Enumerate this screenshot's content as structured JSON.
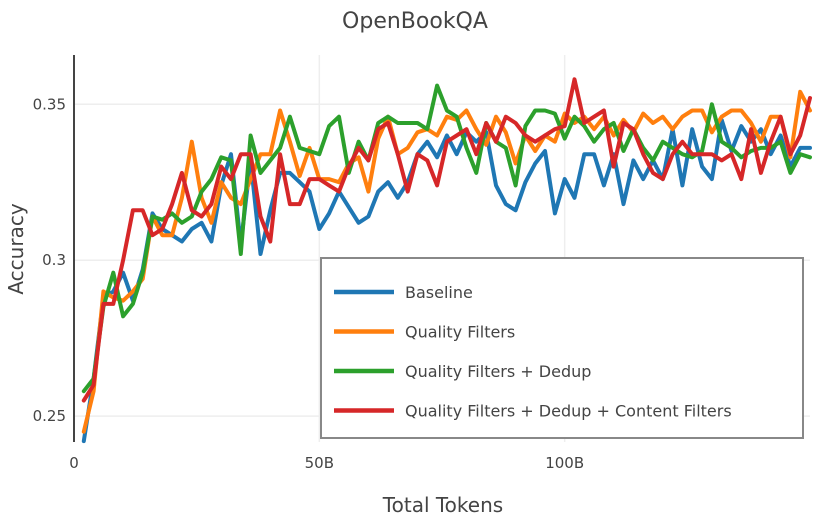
{
  "chart_data": {
    "type": "line",
    "title": "OpenBookQA",
    "xlabel": "Total Tokens",
    "ylabel": "Accuracy",
    "xlim": [
      0,
      150
    ],
    "ylim": [
      0.2417,
      0.3658
    ],
    "x_ticks": [
      {
        "value": 0,
        "label": "0"
      },
      {
        "value": 50,
        "label": "50B"
      },
      {
        "value": 100,
        "label": "100B"
      }
    ],
    "y_ticks": [
      {
        "value": 0.25,
        "label": "0.25"
      },
      {
        "value": 0.3,
        "label": "0.3"
      },
      {
        "value": 0.35,
        "label": "0.35"
      }
    ],
    "grid": true,
    "legend_position": "bottom-right",
    "x": [
      2,
      4,
      6,
      8,
      10,
      12,
      14,
      16,
      18,
      20,
      22,
      24,
      26,
      28,
      30,
      32,
      34,
      36,
      38,
      40,
      42,
      44,
      46,
      48,
      50,
      52,
      54,
      56,
      58,
      60,
      62,
      64,
      66,
      68,
      70,
      72,
      74,
      76,
      78,
      80,
      82,
      84,
      86,
      88,
      90,
      92,
      94,
      96,
      98,
      100,
      102,
      104,
      106,
      108,
      110,
      112,
      114,
      116,
      118,
      120,
      122,
      124,
      126,
      128,
      130,
      132,
      134,
      136,
      138,
      140,
      142,
      144,
      146,
      148,
      150
    ],
    "series": [
      {
        "name": "Baseline",
        "color": "#1f77b4",
        "values": [
          0.242,
          0.262,
          0.288,
          0.29,
          0.296,
          0.287,
          0.297,
          0.315,
          0.31,
          0.308,
          0.306,
          0.31,
          0.312,
          0.306,
          0.324,
          0.334,
          0.305,
          0.332,
          0.302,
          0.316,
          0.328,
          0.328,
          0.325,
          0.322,
          0.31,
          0.315,
          0.322,
          0.317,
          0.312,
          0.314,
          0.322,
          0.325,
          0.32,
          0.325,
          0.334,
          0.338,
          0.333,
          0.34,
          0.334,
          0.341,
          0.338,
          0.341,
          0.324,
          0.318,
          0.316,
          0.325,
          0.331,
          0.335,
          0.315,
          0.326,
          0.32,
          0.334,
          0.334,
          0.324,
          0.334,
          0.318,
          0.332,
          0.326,
          0.332,
          0.326,
          0.342,
          0.324,
          0.342,
          0.33,
          0.326,
          0.345,
          0.335,
          0.343,
          0.338,
          0.342,
          0.334,
          0.34,
          0.33,
          0.336,
          0.336
        ]
      },
      {
        "name": "Quality Filters",
        "color": "#ff7f0e",
        "values": [
          0.245,
          0.258,
          0.29,
          0.288,
          0.287,
          0.29,
          0.294,
          0.314,
          0.308,
          0.308,
          0.32,
          0.338,
          0.32,
          0.312,
          0.325,
          0.32,
          0.318,
          0.326,
          0.334,
          0.334,
          0.348,
          0.338,
          0.327,
          0.336,
          0.326,
          0.326,
          0.325,
          0.331,
          0.333,
          0.322,
          0.339,
          0.346,
          0.334,
          0.336,
          0.341,
          0.342,
          0.34,
          0.346,
          0.345,
          0.348,
          0.342,
          0.337,
          0.346,
          0.341,
          0.331,
          0.34,
          0.335,
          0.34,
          0.338,
          0.347,
          0.344,
          0.346,
          0.342,
          0.346,
          0.34,
          0.345,
          0.341,
          0.347,
          0.344,
          0.346,
          0.342,
          0.346,
          0.348,
          0.348,
          0.341,
          0.346,
          0.348,
          0.348,
          0.344,
          0.338,
          0.346,
          0.346,
          0.333,
          0.354,
          0.348
        ]
      },
      {
        "name": "Quality Filters + Dedup",
        "color": "#2ca02c",
        "values": [
          0.258,
          0.262,
          0.285,
          0.296,
          0.282,
          0.286,
          0.296,
          0.314,
          0.313,
          0.315,
          0.312,
          0.314,
          0.322,
          0.326,
          0.333,
          0.332,
          0.302,
          0.34,
          0.328,
          0.332,
          0.336,
          0.346,
          0.336,
          0.335,
          0.334,
          0.343,
          0.346,
          0.328,
          0.338,
          0.332,
          0.344,
          0.346,
          0.344,
          0.344,
          0.344,
          0.342,
          0.356,
          0.348,
          0.346,
          0.336,
          0.328,
          0.344,
          0.338,
          0.336,
          0.324,
          0.343,
          0.348,
          0.348,
          0.347,
          0.339,
          0.346,
          0.343,
          0.338,
          0.342,
          0.344,
          0.335,
          0.342,
          0.336,
          0.332,
          0.338,
          0.336,
          0.334,
          0.333,
          0.335,
          0.35,
          0.338,
          0.336,
          0.333,
          0.335,
          0.336,
          0.336,
          0.338,
          0.328,
          0.334,
          0.333
        ]
      },
      {
        "name": "Quality Filters + Dedup + Content Filters",
        "color": "#d62728",
        "values": [
          0.255,
          0.26,
          0.286,
          0.286,
          0.3,
          0.316,
          0.316,
          0.308,
          0.31,
          0.318,
          0.328,
          0.316,
          0.314,
          0.318,
          0.33,
          0.326,
          0.334,
          0.334,
          0.314,
          0.306,
          0.334,
          0.318,
          0.318,
          0.326,
          0.326,
          0.324,
          0.322,
          0.33,
          0.336,
          0.332,
          0.342,
          0.344,
          0.334,
          0.322,
          0.334,
          0.332,
          0.324,
          0.338,
          0.34,
          0.342,
          0.334,
          0.344,
          0.338,
          0.346,
          0.344,
          0.34,
          0.338,
          0.34,
          0.342,
          0.343,
          0.358,
          0.344,
          0.346,
          0.348,
          0.33,
          0.344,
          0.342,
          0.334,
          0.328,
          0.326,
          0.334,
          0.338,
          0.334,
          0.334,
          0.334,
          0.332,
          0.334,
          0.326,
          0.342,
          0.328,
          0.338,
          0.346,
          0.334,
          0.34,
          0.352
        ]
      }
    ]
  }
}
